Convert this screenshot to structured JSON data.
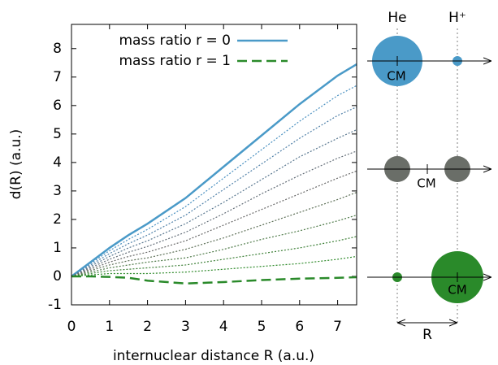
{
  "chart_data": {
    "type": "line",
    "xlabel": "internuclear distance R (a.u.)",
    "ylabel": "d(R) (a.u.)",
    "xlim": [
      0,
      7.5
    ],
    "ylim": [
      -1,
      8.85
    ],
    "xticks": [
      0,
      1,
      2,
      3,
      4,
      5,
      6,
      7
    ],
    "yticks": [
      -1,
      0,
      1,
      2,
      3,
      4,
      5,
      6,
      7,
      8
    ],
    "legend": "top-left",
    "x": [
      0,
      0.5,
      1,
      1.5,
      2,
      3,
      4,
      5,
      6,
      7,
      7.5
    ],
    "series": [
      {
        "name": "mass ratio r = 0",
        "color": "#4a9ac8",
        "style": "solid",
        "values": [
          0,
          0.5,
          1,
          1.45,
          1.85,
          2.75,
          3.85,
          4.95,
          6.05,
          7.05,
          7.45
        ]
      },
      {
        "color": "#4a90c0",
        "style": "dotted",
        "values": [
          0,
          0.45,
          0.9,
          1.3,
          1.65,
          2.45,
          3.45,
          4.45,
          5.45,
          6.35,
          6.7
        ]
      },
      {
        "color": "#5080a8",
        "style": "dotted",
        "values": [
          0,
          0.4,
          0.8,
          1.15,
          1.45,
          2.15,
          3.05,
          3.95,
          4.85,
          5.65,
          5.95
        ]
      },
      {
        "color": "#5a7890",
        "style": "dotted",
        "values": [
          0,
          0.35,
          0.7,
          1.0,
          1.25,
          1.85,
          2.6,
          3.4,
          4.2,
          4.85,
          5.15
        ]
      },
      {
        "color": "#646e78",
        "style": "dotted",
        "values": [
          0,
          0.3,
          0.6,
          0.85,
          1.05,
          1.55,
          2.2,
          2.9,
          3.55,
          4.15,
          4.4
        ]
      },
      {
        "color": "#6a6a6a",
        "style": "dotted",
        "values": [
          0,
          0.25,
          0.5,
          0.7,
          0.85,
          1.25,
          1.8,
          2.35,
          2.9,
          3.45,
          3.7
        ]
      },
      {
        "color": "#5e7058",
        "style": "dotted",
        "values": [
          0,
          0.2,
          0.4,
          0.55,
          0.65,
          0.95,
          1.35,
          1.8,
          2.25,
          2.7,
          2.95
        ]
      },
      {
        "color": "#4e7a48",
        "style": "dotted",
        "values": [
          0,
          0.15,
          0.3,
          0.4,
          0.5,
          0.65,
          0.95,
          1.3,
          1.6,
          1.95,
          2.15
        ]
      },
      {
        "color": "#3e8038",
        "style": "dotted",
        "values": [
          0,
          0.1,
          0.2,
          0.25,
          0.3,
          0.4,
          0.6,
          0.8,
          1.0,
          1.25,
          1.4
        ]
      },
      {
        "color": "#2e8a2a",
        "style": "dotted",
        "values": [
          0,
          0.05,
          0.1,
          0.1,
          0.1,
          0.15,
          0.25,
          0.35,
          0.45,
          0.6,
          0.7
        ]
      },
      {
        "name": "mass ratio r = 1",
        "color": "#2a8a2a",
        "style": "dashed",
        "values": [
          0,
          0,
          -0.02,
          -0.05,
          -0.15,
          -0.25,
          -0.2,
          -0.13,
          -0.08,
          -0.05,
          -0.03
        ]
      }
    ]
  },
  "diagram": {
    "left_label": "He",
    "right_label": "H⁺",
    "cm_labels": [
      "CM",
      "CM",
      "CM"
    ],
    "distance_label": "R"
  }
}
